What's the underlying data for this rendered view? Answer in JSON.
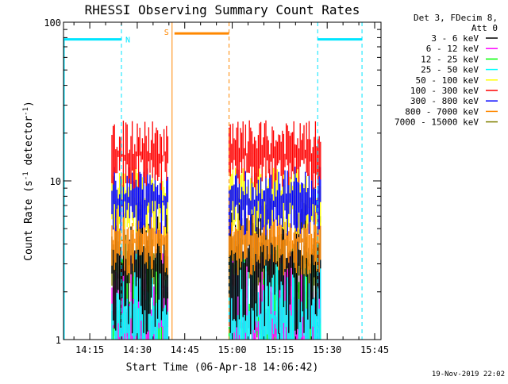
{
  "chart_data": {
    "type": "line",
    "title": "RHESSI Observing Summary Count Rates",
    "xlabel": "Start Time (06-Apr-18 14:06:42)",
    "ylabel": "Count Rate (s^-1 detector^-1)",
    "ylabel_main": "Count Rate (s",
    "ylabel_sup1": "-1",
    "ylabel_mid": " detector",
    "ylabel_sup2": "-1",
    "ylabel_end": ")",
    "yscale": "log",
    "ylim": [
      1,
      100
    ],
    "xlim": [
      "14:06:42",
      "15:47:00"
    ],
    "x_ticks": [
      "14:15",
      "14:30",
      "14:45",
      "15:00",
      "15:15",
      "15:30",
      "15:45"
    ],
    "y_ticks": [
      "1",
      "10",
      "100"
    ],
    "grid": false,
    "legend_position": "right",
    "legend_header": [
      "Det 3, FDecim 8,",
      "Att 0"
    ],
    "timestamp": "19-Nov-2019 22:02",
    "segments": [
      {
        "start": "14:22:00",
        "end": "14:40:00"
      },
      {
        "start": "14:59:00",
        "end": "15:28:00"
      }
    ],
    "series": [
      {
        "name": "3 - 6 keV",
        "color": "#000000",
        "level": 3
      },
      {
        "name": "6 - 12 keV",
        "color": "#ff00ff",
        "level": 1.3
      },
      {
        "name": "12 - 25 keV",
        "color": "#00ff00",
        "level": 1.2
      },
      {
        "name": "25 - 50 keV",
        "color": "#00ffff",
        "level": 1.4
      },
      {
        "name": "50 - 100 keV",
        "color": "#ffff00",
        "level": 7.5
      },
      {
        "name": "100 - 300 keV",
        "color": "#ff0000",
        "level": 14.5
      },
      {
        "name": "300 - 800 keV",
        "color": "#0000ff",
        "level": 7.5
      },
      {
        "name": "800 - 7000 keV",
        "color": "#ff8800",
        "level": 4.2
      },
      {
        "name": "7000 - 15000 keV",
        "color": "#808000",
        "level": 2.8
      }
    ],
    "flags": [
      {
        "label": "N",
        "color": "#00e5ff",
        "start": "14:06:42",
        "end": "14:25:00",
        "dash_end": "14:25:00"
      },
      {
        "label": "",
        "color": "#00e5ff",
        "start": "15:27:00",
        "end": "15:41:00",
        "dash_start": "15:27:00",
        "dash_end": "15:41:00"
      },
      {
        "label": "S",
        "color": "#ff8800",
        "start": "14:41:00",
        "end": "14:59:00",
        "dash_start": "14:41:00",
        "dash_end": "14:59:00"
      }
    ]
  }
}
